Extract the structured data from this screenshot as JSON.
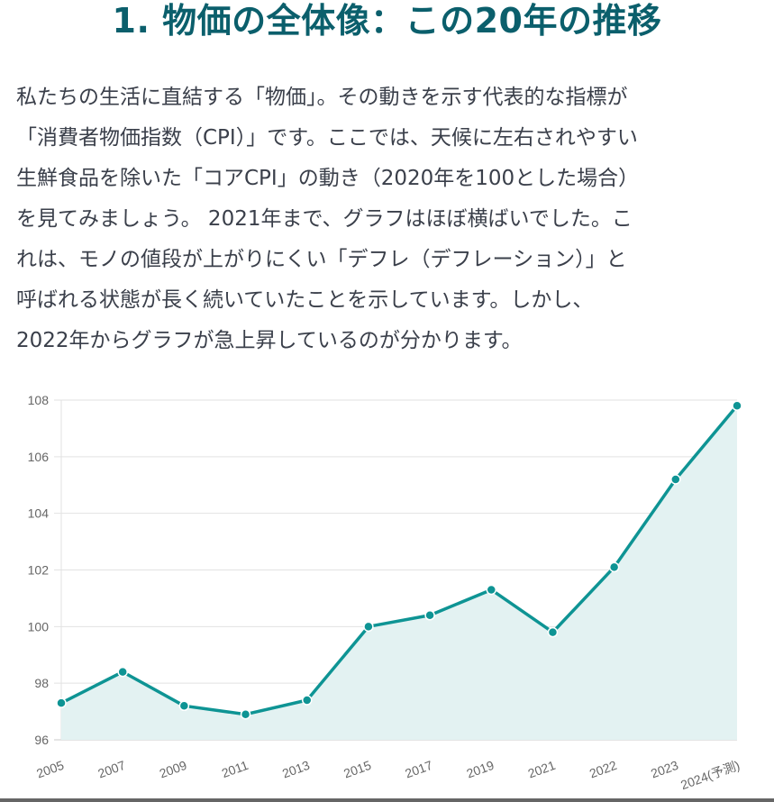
{
  "title": "1. 物価の全体像：この20年の推移",
  "paragraph_lines": [
    "私たちの生活に直結する「物価」。その動きを示す代表的な指標が",
    "「消費者物価指数（CPI）」です。ここでは、天候に左右されやすい",
    "生鮮食品を除いた「コアCPI」の動き（2020年を100とした場合）",
    "を見てみましょう。 2021年まで、グラフはほぼ横ばいでした。こ",
    "れは、モノの値段が上がりにくい「デフレ（デフレーション）」と",
    "呼ばれる状態が長く続いていたことを示しています。しかし、",
    "2022年からグラフが急上昇しているのが分かります。"
  ],
  "colors": {
    "line": "#0e9494",
    "fill": "#e3f2f2",
    "title": "#0b5f6c"
  },
  "chart_data": {
    "type": "area",
    "title": "",
    "xlabel": "",
    "ylabel": "",
    "categories": [
      "2005",
      "2007",
      "2009",
      "2011",
      "2013",
      "2015",
      "2017",
      "2019",
      "2021",
      "2022",
      "2023",
      "2024(予測)"
    ],
    "series": [
      {
        "name": "コアCPI",
        "values": [
          97.3,
          98.4,
          97.2,
          96.9,
          97.4,
          100.0,
          100.4,
          101.3,
          99.8,
          102.1,
          105.2,
          107.8
        ]
      }
    ],
    "ylim": [
      96,
      108
    ],
    "yticks": [
      "96",
      "98",
      "100",
      "102",
      "104",
      "106",
      "108"
    ],
    "grid": true,
    "legend": "none"
  }
}
